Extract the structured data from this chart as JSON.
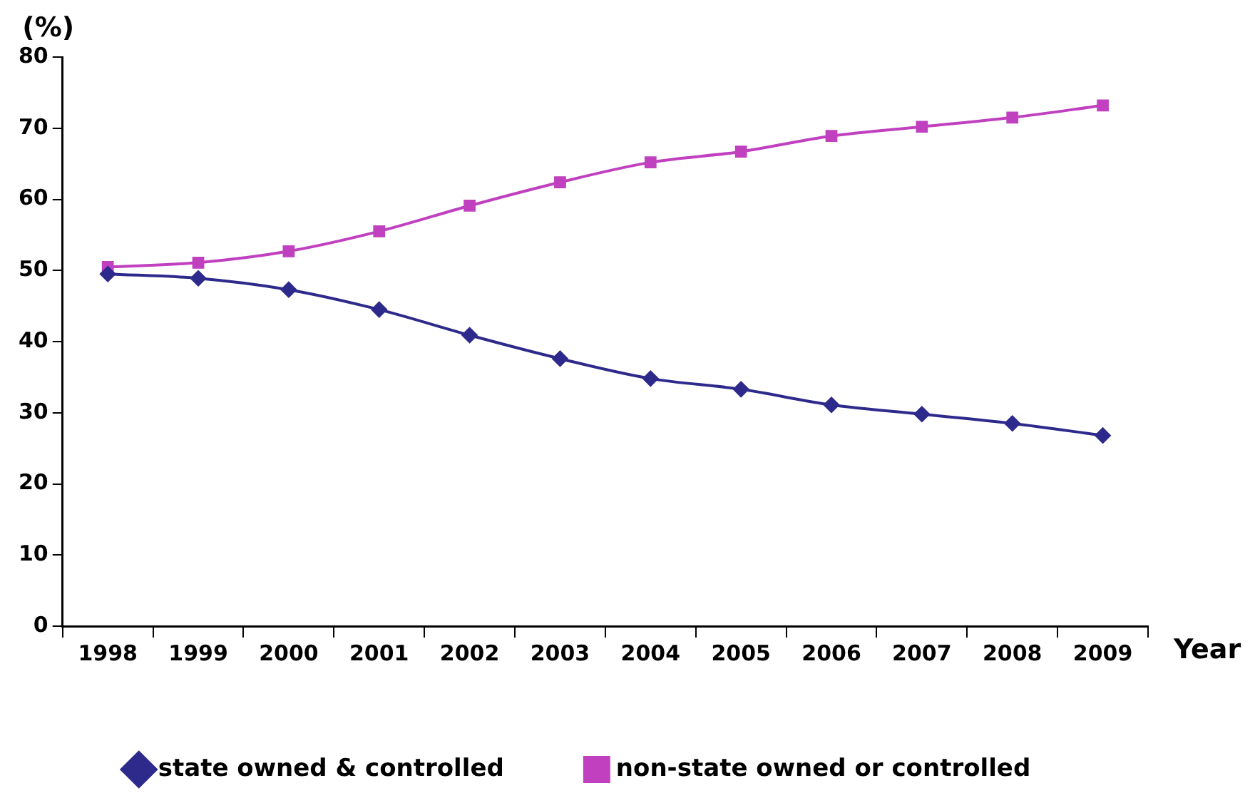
{
  "chart_data": {
    "type": "line",
    "xlabel": "Year",
    "ylabel": "(%)",
    "categories": [
      "1998",
      "1999",
      "2000",
      "2001",
      "2002",
      "2003",
      "2004",
      "2005",
      "2006",
      "2007",
      "2008",
      "2009"
    ],
    "series": [
      {
        "name": "state owned & controlled",
        "color": "#2e2a8c",
        "marker": "diamond",
        "values": [
          49.5,
          48.9,
          47.3,
          44.5,
          40.9,
          37.6,
          34.8,
          33.3,
          31.1,
          29.8,
          28.5,
          26.8
        ]
      },
      {
        "name": "non-state owned or controlled",
        "color": "#c040c0",
        "marker": "square",
        "values": [
          50.5,
          51.1,
          52.7,
          55.5,
          59.1,
          62.4,
          65.2,
          66.7,
          68.9,
          70.2,
          71.5,
          73.2
        ]
      }
    ],
    "ylim": [
      0,
      80
    ],
    "yticks": [
      0,
      10,
      20,
      30,
      40,
      50,
      60,
      70,
      80
    ],
    "grid": false,
    "legend": "bottom",
    "line_style": "solid"
  }
}
